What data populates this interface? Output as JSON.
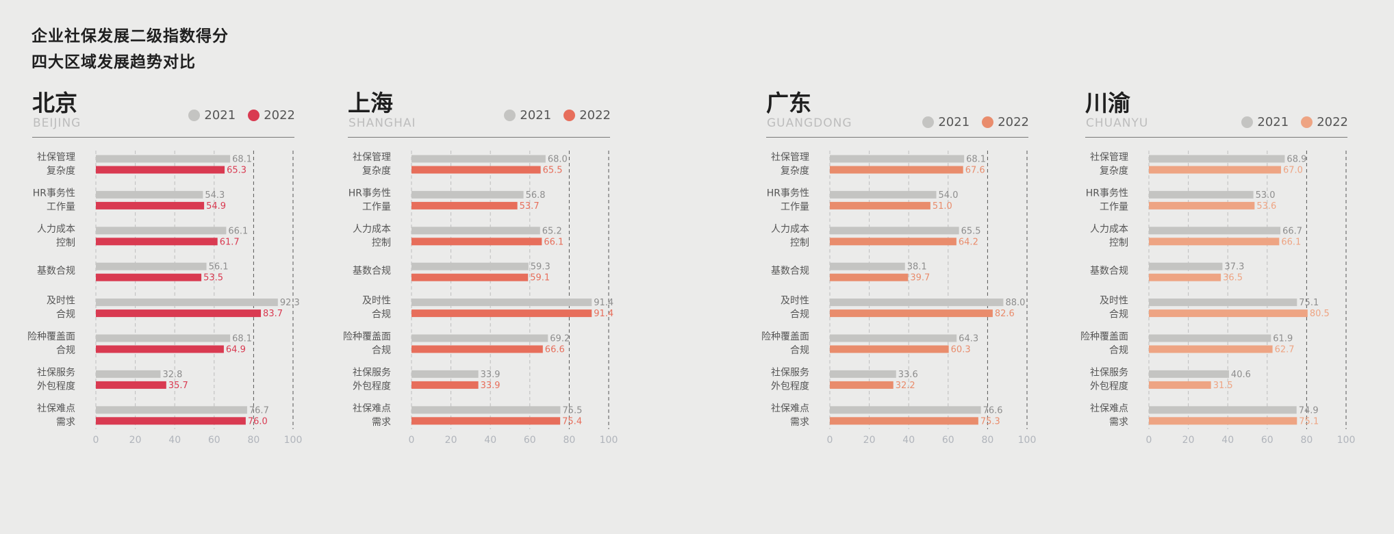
{
  "title": {
    "line1": "企业社保发展二级指数得分",
    "line2": "四大区域发展趋势对比"
  },
  "legend_labels": [
    "2021",
    "2022"
  ],
  "colors": {
    "y2021": "#c4c4c2",
    "grid_dash": "#bdbdbd",
    "grid_strong": "#555555",
    "beijing": "#d93a51",
    "shanghai": "#e76e5b",
    "guangdong": "#e98c6c",
    "chuanyu": "#eea483"
  },
  "chart_data": [
    {
      "type": "bar",
      "title": "北京",
      "subtitle": "BEIJING",
      "categories": [
        [
          "社保管理",
          "复杂度"
        ],
        [
          "HR事务性",
          "工作量"
        ],
        [
          "人力成本",
          "控制"
        ],
        [
          "基数合规"
        ],
        [
          "及时性",
          "合规"
        ],
        [
          "险种覆盖面",
          "合规"
        ],
        [
          "社保服务",
          "外包程度"
        ],
        [
          "社保难点",
          "需求"
        ]
      ],
      "series": [
        {
          "name": "2021",
          "values": [
            68.1,
            54.3,
            66.1,
            56.1,
            92.3,
            68.1,
            32.8,
            76.7
          ]
        },
        {
          "name": "2022",
          "values": [
            65.3,
            54.9,
            61.7,
            53.5,
            83.7,
            64.9,
            35.7,
            76.0
          ]
        }
      ],
      "xlim": [
        0,
        100
      ],
      "xticks": [
        0,
        20,
        40,
        60,
        80,
        100
      ],
      "legend_position": "top-right"
    },
    {
      "type": "bar",
      "title": "上海",
      "subtitle": "SHANGHAI",
      "categories": [
        [
          "社保管理",
          "复杂度"
        ],
        [
          "HR事务性",
          "工作量"
        ],
        [
          "人力成本",
          "控制"
        ],
        [
          "基数合规"
        ],
        [
          "及时性",
          "合规"
        ],
        [
          "险种覆盖面",
          "合规"
        ],
        [
          "社保服务",
          "外包程度"
        ],
        [
          "社保难点",
          "需求"
        ]
      ],
      "series": [
        {
          "name": "2021",
          "values": [
            68.0,
            56.8,
            65.2,
            59.3,
            91.4,
            69.2,
            33.9,
            75.5
          ]
        },
        {
          "name": "2022",
          "values": [
            65.5,
            53.7,
            66.1,
            59.1,
            91.4,
            66.6,
            33.9,
            75.4
          ]
        }
      ],
      "xlim": [
        0,
        100
      ],
      "xticks": [
        0,
        20,
        40,
        60,
        80,
        100
      ],
      "legend_position": "top-right"
    },
    {
      "type": "bar",
      "title": "广东",
      "subtitle": "GUANGDONG",
      "categories": [
        [
          "社保管理",
          "复杂度"
        ],
        [
          "HR事务性",
          "工作量"
        ],
        [
          "人力成本",
          "控制"
        ],
        [
          "基数合规"
        ],
        [
          "及时性",
          "合规"
        ],
        [
          "险种覆盖面",
          "合规"
        ],
        [
          "社保服务",
          "外包程度"
        ],
        [
          "社保难点",
          "需求"
        ]
      ],
      "series": [
        {
          "name": "2021",
          "values": [
            68.1,
            54.0,
            65.5,
            38.1,
            88.0,
            64.3,
            33.6,
            76.6
          ]
        },
        {
          "name": "2022",
          "values": [
            67.6,
            51.0,
            64.2,
            39.7,
            82.6,
            60.3,
            32.2,
            75.3
          ]
        }
      ],
      "xlim": [
        0,
        100
      ],
      "xticks": [
        0,
        20,
        40,
        60,
        80,
        100
      ],
      "legend_position": "top-right"
    },
    {
      "type": "bar",
      "title": "川渝",
      "subtitle": "CHUANYU",
      "categories": [
        [
          "社保管理",
          "复杂度"
        ],
        [
          "HR事务性",
          "工作量"
        ],
        [
          "人力成本",
          "控制"
        ],
        [
          "基数合规"
        ],
        [
          "及时性",
          "合规"
        ],
        [
          "险种覆盖面",
          "合规"
        ],
        [
          "社保服务",
          "外包程度"
        ],
        [
          "社保难点",
          "需求"
        ]
      ],
      "series": [
        {
          "name": "2021",
          "values": [
            68.9,
            53.0,
            66.7,
            37.3,
            75.1,
            61.9,
            40.6,
            74.9
          ]
        },
        {
          "name": "2022",
          "values": [
            67.0,
            53.6,
            66.1,
            36.5,
            80.5,
            62.7,
            31.5,
            75.1
          ]
        }
      ],
      "xlim": [
        0,
        100
      ],
      "xticks": [
        0,
        20,
        40,
        60,
        80,
        100
      ],
      "legend_position": "top-right"
    }
  ]
}
